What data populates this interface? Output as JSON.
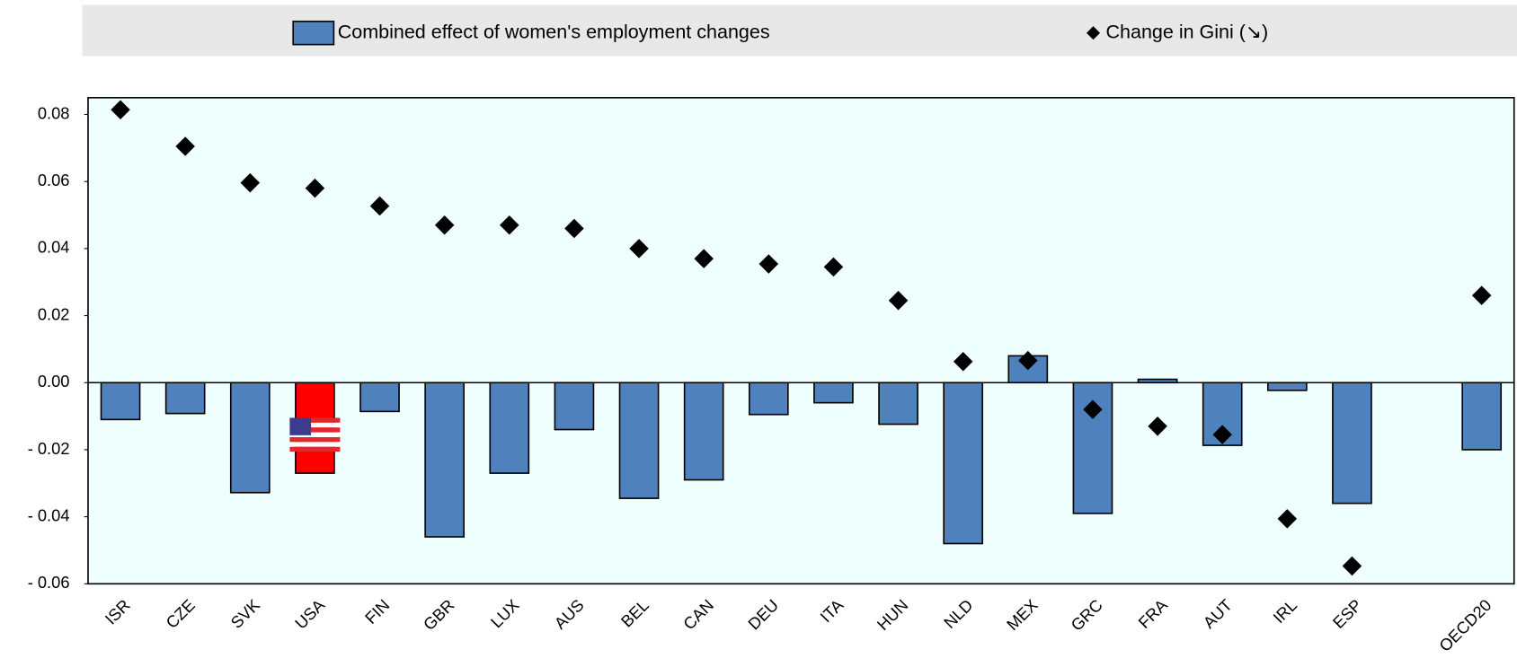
{
  "chart_data": {
    "type": "bar",
    "categories": [
      "ISR",
      "CZE",
      "SVK",
      "USA",
      "FIN",
      "GBR",
      "LUX",
      "AUS",
      "BEL",
      "CAN",
      "DEU",
      "ITA",
      "HUN",
      "NLD",
      "MEX",
      "GRC",
      "FRA",
      "AUT",
      "IRL",
      "ESP",
      null,
      "OECD20"
    ],
    "series": [
      {
        "name": "Combined effect of women's employment changes",
        "type": "bar",
        "color": "#4f81bd",
        "bar_colors": [
          "#4f81bd",
          "#4f81bd",
          "#4f81bd",
          "#ff0000",
          "#4f81bd",
          "#4f81bd",
          "#4f81bd",
          "#4f81bd",
          "#4f81bd",
          "#4f81bd",
          "#4f81bd",
          "#4f81bd",
          "#4f81bd",
          "#4f81bd",
          "#4f81bd",
          "#4f81bd",
          "#4f81bd",
          "#4f81bd",
          "#4f81bd",
          "#4f81bd",
          null,
          "#4f81bd"
        ],
        "values": [
          -0.011,
          -0.0092,
          -0.0328,
          -0.027,
          -0.0086,
          -0.046,
          -0.027,
          -0.014,
          -0.0345,
          -0.029,
          -0.0095,
          -0.006,
          -0.0124,
          -0.048,
          0.008,
          -0.039,
          0.001,
          -0.0187,
          -0.0023,
          -0.036,
          null,
          -0.02
        ]
      },
      {
        "name": "Change in Gini (↘)",
        "type": "scatter",
        "color": "#000000",
        "values": [
          0.0814,
          0.0705,
          0.0596,
          0.058,
          0.0527,
          0.047,
          0.047,
          0.046,
          0.04,
          0.037,
          0.0354,
          0.0345,
          0.0245,
          0.0063,
          0.0066,
          -0.008,
          -0.013,
          -0.0155,
          -0.0406,
          -0.0547,
          null,
          0.026
        ]
      }
    ],
    "ylim": [
      -0.06,
      0.085
    ],
    "yticks": [
      0.08,
      0.06,
      0.04,
      0.02,
      {
        "value": 0,
        "label": "0.00"
      },
      {
        "value": -0.02,
        "label": "- 0.02"
      },
      {
        "value": -0.04,
        "label": "- 0.04"
      },
      {
        "value": -0.06,
        "label": "- 0.06"
      }
    ],
    "plot_background": "#effffe",
    "legend": "top"
  }
}
